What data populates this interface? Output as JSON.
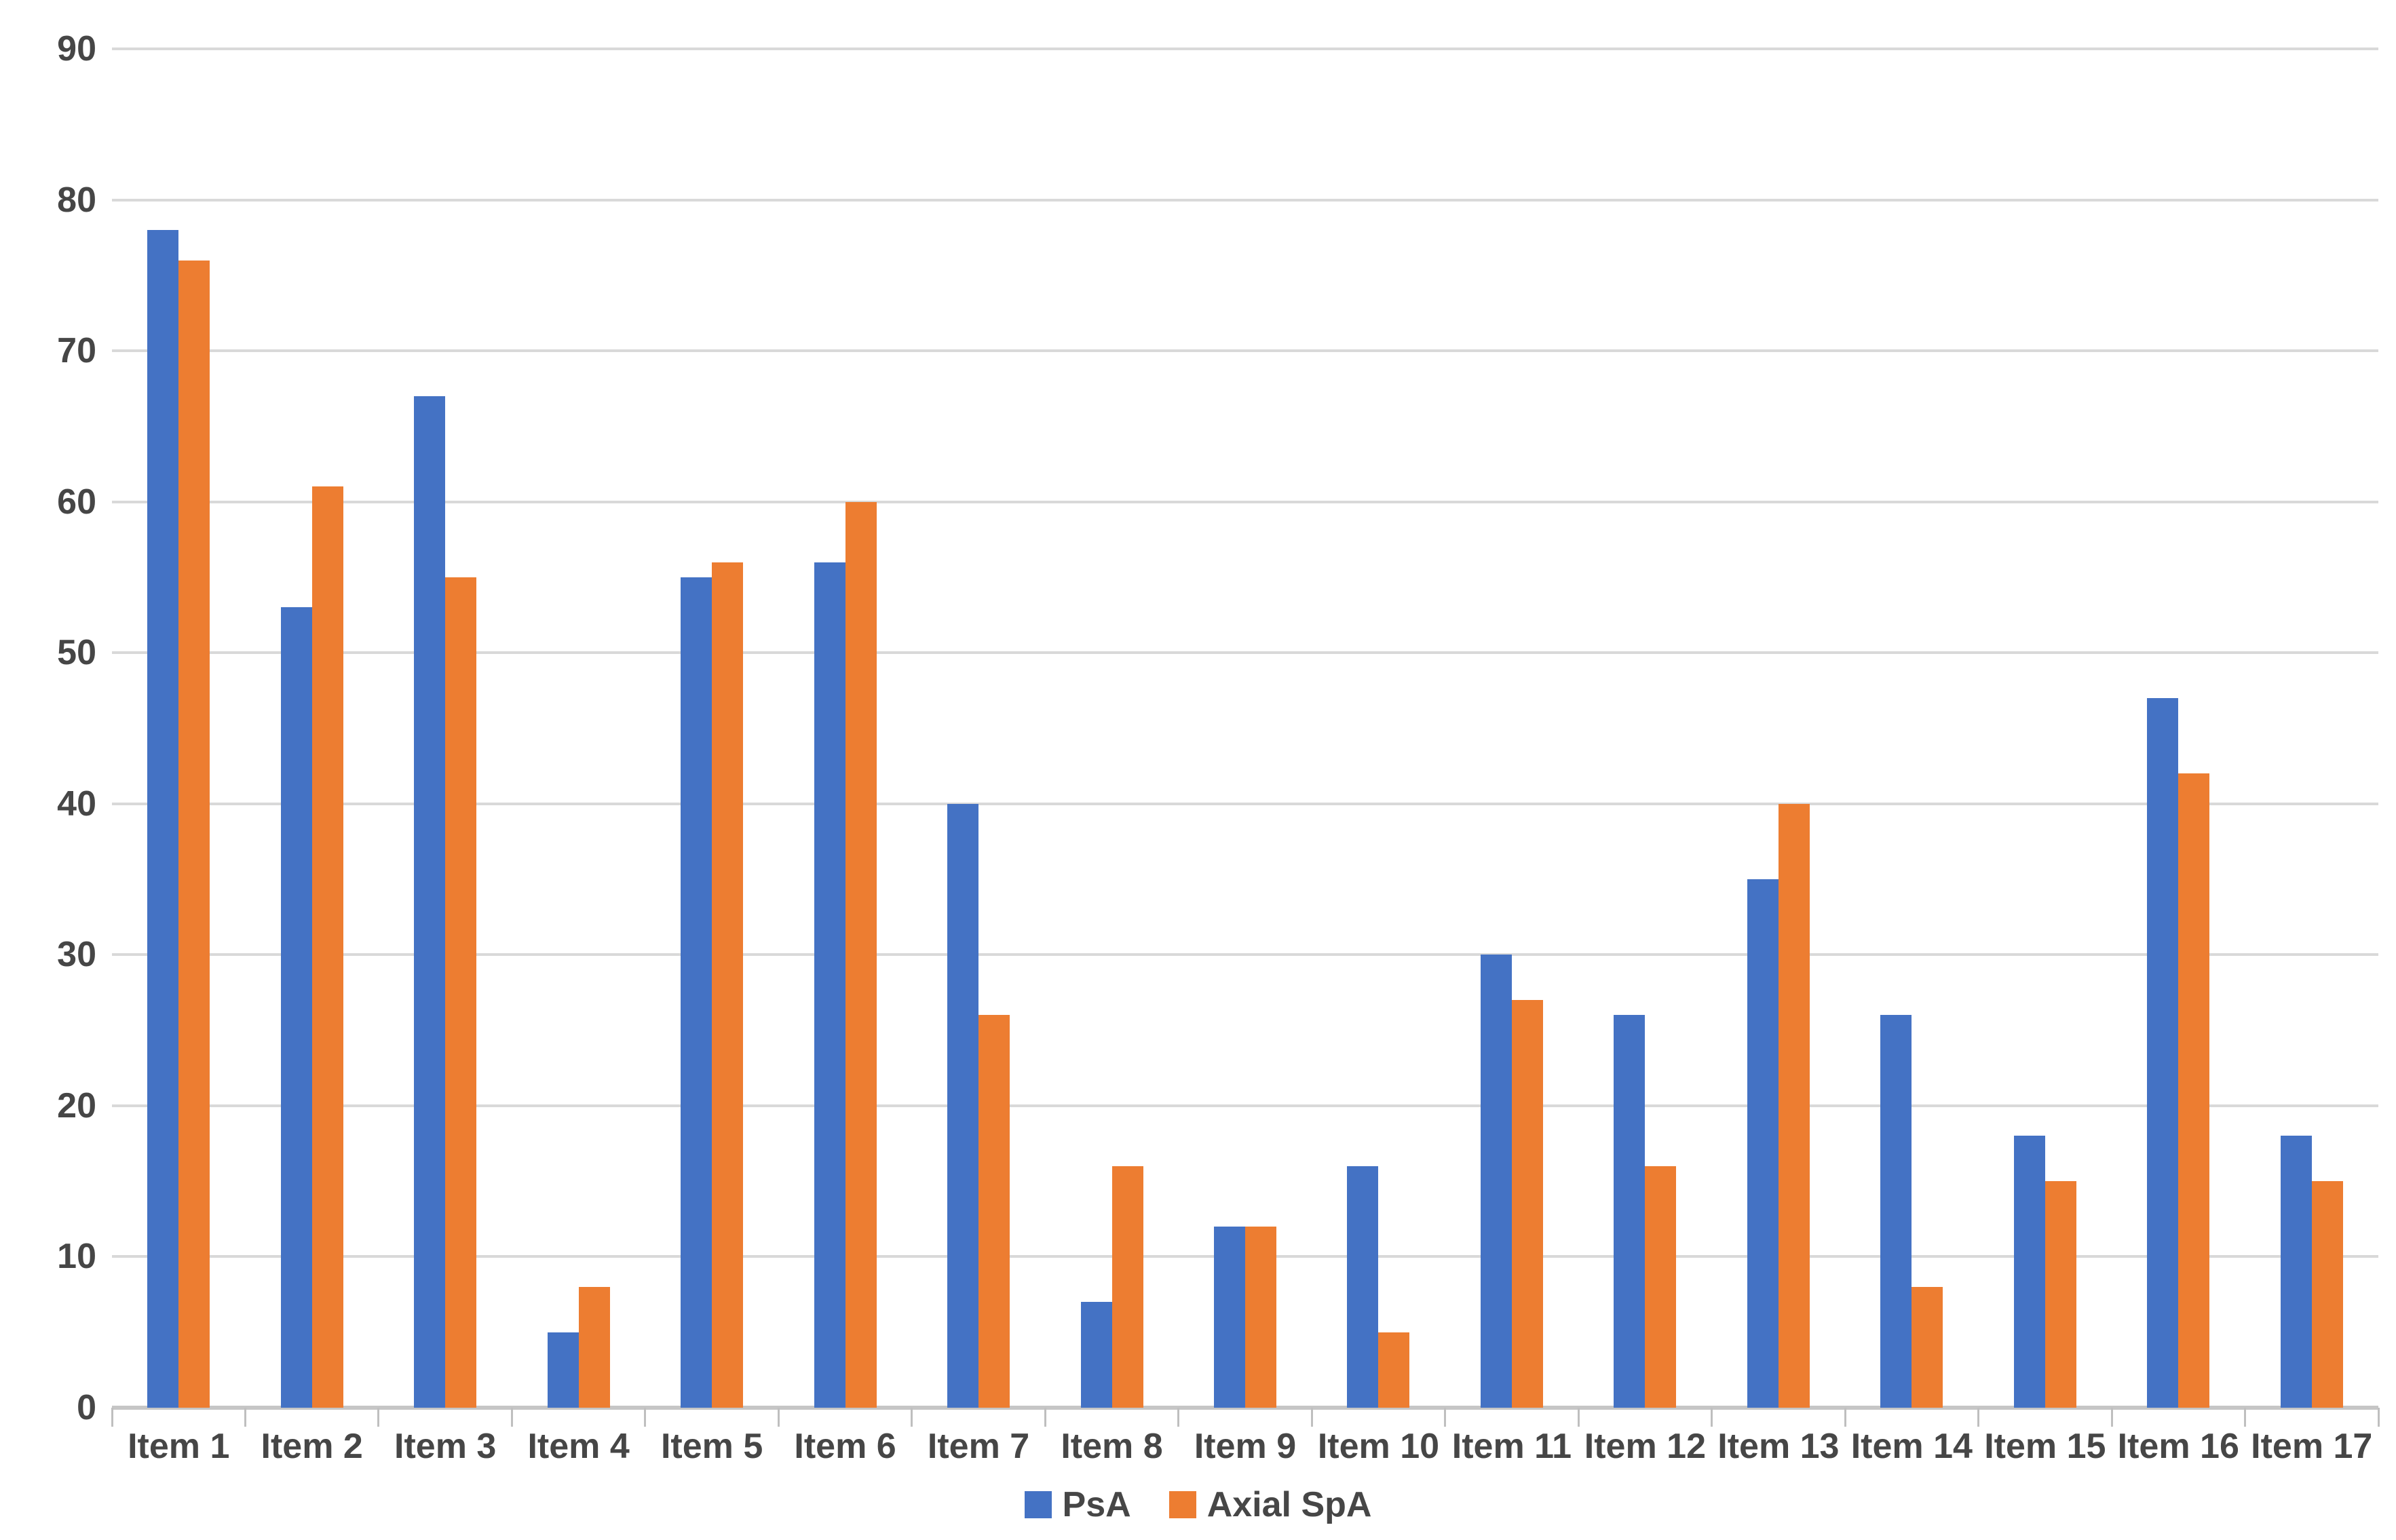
{
  "chart_data": {
    "type": "bar",
    "title": "",
    "xlabel": "",
    "ylabel": "",
    "categories": [
      "Item 1",
      "Item 2",
      "Item 3",
      "Item 4",
      "Item 5",
      "Item 6",
      "Item 7",
      "Item 8",
      "Item 9",
      "Item 10",
      "Item 11",
      "Item 12",
      "Item 13",
      "Item 14",
      "Item 15",
      "Item 16",
      "Item 17"
    ],
    "series": [
      {
        "name": "PsA",
        "color": "#4472C4",
        "values": [
          78,
          53,
          67,
          5,
          55,
          56,
          40,
          7,
          12,
          16,
          30,
          26,
          35,
          26,
          18,
          47,
          18
        ]
      },
      {
        "name": "Axial SpA",
        "color": "#ED7D31",
        "values": [
          76,
          61,
          55,
          8,
          56,
          60,
          26,
          16,
          12,
          5,
          27,
          16,
          40,
          8,
          15,
          42,
          15
        ]
      }
    ],
    "y_axis": {
      "min": 0,
      "max": 90,
      "step": 10,
      "tick_labels": [
        "0",
        "10",
        "20",
        "30",
        "40",
        "50",
        "60",
        "70",
        "80",
        "90"
      ]
    },
    "grid": true,
    "legend_position": "bottom-center"
  },
  "styles": {
    "background": "#ffffff",
    "grid_color": "#d9d9d9",
    "baseline_color": "#c6c6c6",
    "tick_color": "#bfbfbf",
    "text_color": "#464646"
  }
}
